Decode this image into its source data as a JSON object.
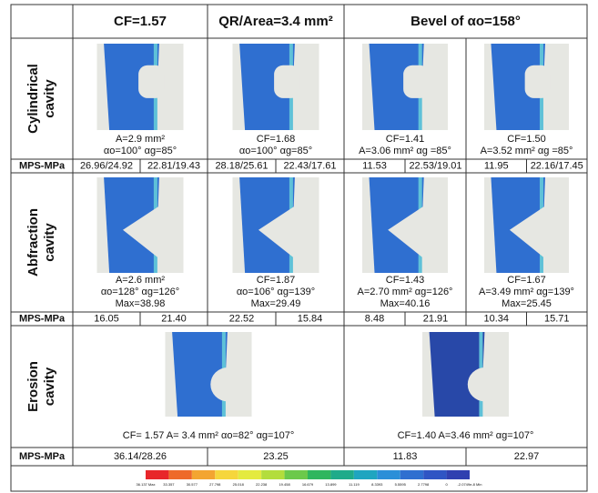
{
  "header": [
    "CF=1.57",
    "QR/Area=3.4 mm²",
    "Bevel of αo=158°"
  ],
  "rows": [
    {
      "label": [
        "Cylindrical",
        "cavity"
      ],
      "panels": [
        [
          "A=2.9 mm²",
          "αo=100° αg=85°"
        ],
        [
          "CF=1.68",
          "αo=100° αg=85°"
        ],
        [
          "CF=1.41",
          "A=3.06 mm² αg =85°"
        ],
        [
          "CF=1.50",
          "A=3.52 mm² αg =85°"
        ]
      ],
      "mps_label": "MPS-MPa",
      "mps": [
        "26.96/24.92",
        "22.81/19.43",
        "28.18/25.61",
        "22.43/17.61",
        "11.53",
        "22.53/19.01",
        "11.95",
        "22.16/17.45"
      ]
    },
    {
      "label": [
        "Abfraction",
        "cavity"
      ],
      "panels": [
        [
          "A=2.6 mm²",
          "αo=128° αg=126°",
          "Max=38.98"
        ],
        [
          "CF=1.87",
          "αo=106° αg=139°",
          "Max=29.49"
        ],
        [
          "CF=1.43",
          "A=2.70 mm² αg=126°",
          "Max=40.16"
        ],
        [
          "CF=1.67",
          "A=3.49 mm² αg=139°",
          "Max=25.45"
        ]
      ],
      "mps_label": "MPS-MPa",
      "mps": [
        "16.05",
        "21.40",
        "22.52",
        "15.84",
        "8.48",
        "21.91",
        "10.34",
        "15.71"
      ]
    },
    {
      "label": [
        "Erosion",
        "cavity"
      ],
      "panels": [
        [
          "CF= 1.57 A= 3.4 mm²  αo=82° αg=107°"
        ],
        [
          "CF=1.40 A=3.46 mm²  αg=107°"
        ]
      ],
      "mps_label": "MPS-MPa",
      "mps": [
        "36.14/28.26",
        "23.25",
        "11.83",
        "22.97"
      ]
    }
  ],
  "colorbar": {
    "labels": [
      "36.137 Max",
      "33.357",
      "30.577",
      "27.798",
      "25.018",
      "22.238",
      "19.458",
      "16.679",
      "13.899",
      "11.119",
      "8.3393",
      "5.5595",
      "2.7798",
      "0",
      "-2.0749e-8 Min"
    ],
    "colors": [
      "#e8262a",
      "#ee6a2a",
      "#f3a531",
      "#f6d63c",
      "#e4ea3f",
      "#b3dd3c",
      "#6cc94b",
      "#2fb65e",
      "#1fab8a",
      "#1fa5c0",
      "#2b8fd8",
      "#2f6fd0",
      "#2f55c4",
      "#3040b0"
    ]
  }
}
